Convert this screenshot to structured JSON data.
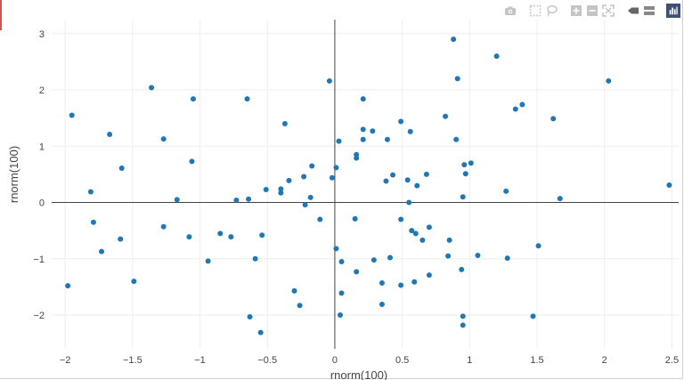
{
  "modebar": {
    "buttons": [
      "camera-icon",
      "box-select-icon",
      "lasso-icon",
      "zoom-in-icon",
      "zoom-out-icon",
      "autoscale-icon",
      "hover-closest-icon",
      "hover-compare-icon",
      "plotly-logo-icon"
    ],
    "icon_color": "#c4c4c4",
    "logo_color": "#3f4f75"
  },
  "chart_data": {
    "type": "scatter",
    "xlabel": "rnorm(100)",
    "ylabel": "rnorm(100)",
    "xlim": [
      -2.1,
      2.55
    ],
    "ylim": [
      -2.6,
      3.25
    ],
    "xticks": [
      -2,
      -1.5,
      -1,
      -0.5,
      0,
      0.5,
      1,
      1.5,
      2,
      2.5
    ],
    "yticks": [
      -2,
      -1,
      0,
      1,
      2,
      3
    ],
    "xtick_labels": [
      "−2",
      "−1.5",
      "−1",
      "−0.5",
      "0",
      "0.5",
      "1",
      "1.5",
      "2",
      "2.5"
    ],
    "ytick_labels": [
      "−2",
      "−1",
      "0",
      "1",
      "2",
      "3"
    ],
    "grid": true,
    "zero_lines": true,
    "marker_color": "#1f77b4",
    "points": [
      [
        -1.95,
        1.55
      ],
      [
        -1.98,
        -1.48
      ],
      [
        -1.81,
        0.19
      ],
      [
        -1.79,
        -0.35
      ],
      [
        -1.73,
        -0.87
      ],
      [
        -1.67,
        1.21
      ],
      [
        -1.59,
        -0.65
      ],
      [
        -1.58,
        0.61
      ],
      [
        -1.49,
        -1.4
      ],
      [
        -1.36,
        2.04
      ],
      [
        -1.27,
        1.13
      ],
      [
        -1.27,
        -0.43
      ],
      [
        -1.17,
        0.05
      ],
      [
        -1.08,
        -0.61
      ],
      [
        -1.06,
        0.73
      ],
      [
        -1.05,
        1.84
      ],
      [
        -0.94,
        -1.04
      ],
      [
        -0.85,
        -0.55
      ],
      [
        -0.77,
        -0.61
      ],
      [
        -0.73,
        0.04
      ],
      [
        -0.65,
        1.84
      ],
      [
        -0.64,
        0.06
      ],
      [
        -0.63,
        -2.03
      ],
      [
        -0.59,
        -1.0
      ],
      [
        -0.55,
        -2.31
      ],
      [
        -0.54,
        -0.58
      ],
      [
        -0.51,
        0.23
      ],
      [
        -0.4,
        0.24
      ],
      [
        -0.4,
        0.17
      ],
      [
        -0.37,
        1.4
      ],
      [
        -0.34,
        0.39
      ],
      [
        -0.3,
        -1.57
      ],
      [
        -0.26,
        -1.83
      ],
      [
        -0.23,
        0.46
      ],
      [
        -0.22,
        -0.04
      ],
      [
        -0.18,
        0.09
      ],
      [
        -0.17,
        0.65
      ],
      [
        -0.11,
        -0.3
      ],
      [
        -0.04,
        2.16
      ],
      [
        -0.02,
        0.44
      ],
      [
        0.01,
        0.62
      ],
      [
        0.01,
        -0.82
      ],
      [
        0.03,
        1.09
      ],
      [
        0.04,
        -2.0
      ],
      [
        0.05,
        -1.05
      ],
      [
        0.05,
        -1.61
      ],
      [
        0.15,
        -0.29
      ],
      [
        0.16,
        -1.23
      ],
      [
        0.16,
        0.79
      ],
      [
        0.16,
        0.85
      ],
      [
        0.21,
        1.12
      ],
      [
        0.21,
        1.3
      ],
      [
        0.21,
        1.84
      ],
      [
        0.28,
        1.27
      ],
      [
        0.29,
        -1.02
      ],
      [
        0.35,
        -1.43
      ],
      [
        0.35,
        -1.81
      ],
      [
        0.38,
        0.38
      ],
      [
        0.39,
        1.12
      ],
      [
        0.41,
        -0.98
      ],
      [
        0.43,
        0.49
      ],
      [
        0.49,
        -0.3
      ],
      [
        0.49,
        1.44
      ],
      [
        0.49,
        -1.47
      ],
      [
        0.54,
        0.4
      ],
      [
        0.55,
        0.0
      ],
      [
        0.56,
        1.26
      ],
      [
        0.57,
        -0.5
      ],
      [
        0.59,
        -1.41
      ],
      [
        0.6,
        -0.55
      ],
      [
        0.61,
        0.3
      ],
      [
        0.65,
        -0.67
      ],
      [
        0.68,
        0.5
      ],
      [
        0.7,
        -1.29
      ],
      [
        0.7,
        -0.44
      ],
      [
        0.82,
        1.53
      ],
      [
        0.84,
        -0.95
      ],
      [
        0.85,
        -0.67
      ],
      [
        0.88,
        2.9
      ],
      [
        0.9,
        1.12
      ],
      [
        0.91,
        2.2
      ],
      [
        0.94,
        -1.19
      ],
      [
        0.95,
        -2.02
      ],
      [
        0.95,
        -2.18
      ],
      [
        0.95,
        0.1
      ],
      [
        0.96,
        0.67
      ],
      [
        0.97,
        0.51
      ],
      [
        1.01,
        0.7
      ],
      [
        1.06,
        -0.94
      ],
      [
        1.2,
        2.6
      ],
      [
        1.27,
        0.2
      ],
      [
        1.28,
        -0.99
      ],
      [
        1.34,
        1.66
      ],
      [
        1.39,
        1.74
      ],
      [
        1.47,
        -2.02
      ],
      [
        1.51,
        -0.77
      ],
      [
        1.62,
        1.49
      ],
      [
        1.67,
        0.07
      ],
      [
        2.03,
        2.16
      ],
      [
        2.48,
        0.31
      ]
    ]
  }
}
